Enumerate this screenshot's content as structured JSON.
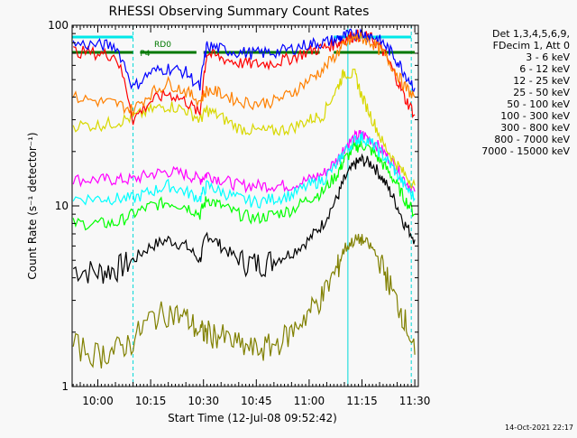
{
  "chart_data": {
    "type": "line",
    "title": "RHESSI Observing Summary Count Rates",
    "xlabel": "Start Time (12-Jul-08 09:52:42)",
    "ylabel": "Count Rate (s⁻¹ detector⁻¹)",
    "y_scale": "log",
    "ylim": [
      1,
      100
    ],
    "xlim": [
      "09:52:42",
      "11:31:00"
    ],
    "x_ticks": [
      "10:00",
      "10:15",
      "10:30",
      "10:45",
      "11:00",
      "11:15",
      "11:30"
    ],
    "y_ticks": [
      "1",
      "10",
      "100"
    ],
    "legend_header": [
      "Det 1,3,4,5,6,9,",
      "FDecim 1, Att 0"
    ],
    "legend_position": "right",
    "timestamp": "14-Oct-2021 22:17",
    "annotations": [
      {
        "text": "RD0",
        "x": "10:16"
      },
      {
        "text": "P4",
        "x": "10:12"
      }
    ],
    "state_bars": [
      {
        "label": "cyan",
        "color": "#00e8e8",
        "segments": [
          [
            "09:52:42",
            "10:10"
          ],
          [
            "11:07",
            "11:29"
          ]
        ]
      },
      {
        "label": "green",
        "color": "#007800",
        "segments": [
          [
            "09:52:42",
            "10:10"
          ],
          [
            "10:12",
            "10:28"
          ],
          [
            "10:30",
            "11:03"
          ],
          [
            "11:07",
            "11:30"
          ]
        ]
      }
    ],
    "vertical_markers": [
      {
        "time": "10:10",
        "color": "#00d8d8",
        "style": "dashed"
      },
      {
        "time": "11:11",
        "color": "#00d8d8",
        "style": "solid"
      },
      {
        "time": "11:29",
        "color": "#00d8d8",
        "style": "dashed"
      }
    ],
    "x_times": [
      "09:53",
      "10:00",
      "10:05",
      "10:10",
      "10:15",
      "10:20",
      "10:25",
      "10:29",
      "10:31",
      "10:35",
      "10:40",
      "10:45",
      "10:50",
      "10:55",
      "11:00",
      "11:04",
      "11:08",
      "11:10",
      "11:13",
      "11:15",
      "11:18",
      "11:21",
      "11:24",
      "11:27",
      "11:30"
    ],
    "series": [
      {
        "name": "3 - 6 keV",
        "color": "#000000",
        "values": [
          4.5,
          4.3,
          4.5,
          5.0,
          6.0,
          6.5,
          6.0,
          5.0,
          7.0,
          6.0,
          5.0,
          4.8,
          5.0,
          5.5,
          6.5,
          8.0,
          11,
          14,
          17,
          18,
          17,
          14,
          11,
          8,
          6.5
        ]
      },
      {
        "name": "6 - 12 keV",
        "color": "#ff00ff",
        "values": [
          14,
          14,
          14,
          14,
          15,
          15.5,
          15,
          14,
          15,
          14,
          13,
          13,
          13,
          13,
          14,
          15,
          18,
          21,
          24,
          25,
          23,
          20,
          17,
          14,
          12
        ]
      },
      {
        "name": "12 - 25 keV",
        "color": "#00ff00",
        "values": [
          8.0,
          8.0,
          8.0,
          9.0,
          10,
          10.5,
          10,
          9.0,
          11,
          10,
          9.0,
          8.5,
          9.0,
          9.5,
          11,
          12,
          15,
          18,
          21,
          22,
          20,
          17,
          14,
          11,
          9.0
        ]
      },
      {
        "name": "25 - 50 keV",
        "color": "#00ffff",
        "values": [
          11,
          11,
          11,
          11,
          12,
          13,
          12,
          11,
          13,
          12,
          11,
          10.5,
          11,
          11.5,
          13,
          14,
          17,
          20,
          23,
          24,
          22,
          19,
          16,
          13,
          11
        ]
      },
      {
        "name": "50 - 100 keV",
        "color": "#d8d800",
        "values": [
          28,
          28,
          29,
          31,
          34,
          36,
          34,
          30,
          34,
          31,
          27,
          26,
          26,
          27,
          30,
          32,
          45,
          55,
          53,
          40,
          30,
          22,
          18,
          15,
          13
        ]
      },
      {
        "name": "100 - 300 keV",
        "color": "#ff0000",
        "values": [
          72,
          70,
          68,
          30,
          38,
          42,
          38,
          32,
          70,
          66,
          62,
          61,
          62,
          66,
          72,
          75,
          80,
          84,
          88,
          88,
          84,
          72,
          55,
          40,
          32
        ]
      },
      {
        "name": "300 - 800 keV",
        "color": "#0000ff",
        "values": [
          79,
          78,
          77,
          45,
          55,
          58,
          55,
          45,
          77,
          74,
          71,
          70,
          71,
          74,
          79,
          80,
          84,
          87,
          90,
          90,
          87,
          80,
          68,
          55,
          45
        ]
      },
      {
        "name": "800 - 7000 keV",
        "color": "#ff8000",
        "values": [
          40,
          38,
          37,
          34,
          42,
          48,
          43,
          38,
          44,
          42,
          38,
          37,
          38,
          42,
          50,
          57,
          70,
          78,
          85,
          85,
          80,
          70,
          58,
          46,
          40
        ]
      },
      {
        "name": "7000 - 15000 keV",
        "color": "#808000",
        "values": [
          1.7,
          1.5,
          1.6,
          1.8,
          2.4,
          2.6,
          2.4,
          2.0,
          2.0,
          1.9,
          1.7,
          1.6,
          1.7,
          2.0,
          2.6,
          3.2,
          4.5,
          5.8,
          6.5,
          6.5,
          5.8,
          4.5,
          3.2,
          2.4,
          1.5
        ]
      }
    ]
  }
}
